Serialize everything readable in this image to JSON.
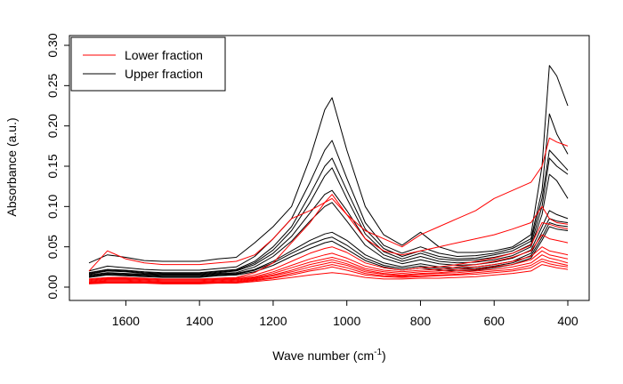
{
  "chart_data": {
    "type": "line",
    "title": "",
    "xlabel": "Wave number (cm",
    "xlabel_sup": "-1",
    "xlabel_close": ")",
    "ylabel": "Absorbance (a.u.)",
    "xlim": [
      1700,
      400
    ],
    "ylim": [
      0,
      0.31
    ],
    "x_reversed": true,
    "xticks": [
      1600,
      1400,
      1200,
      1000,
      800,
      600,
      400
    ],
    "yticks": [
      0.0,
      0.05,
      0.1,
      0.15,
      0.2,
      0.25,
      0.3
    ],
    "ytick_labels": [
      "0.00",
      "0.05",
      "0.10",
      "0.15",
      "0.20",
      "0.25",
      "0.30"
    ],
    "legend_position": "top-left",
    "legend": [
      {
        "label": "Lower fraction",
        "color": "#ff0000"
      },
      {
        "label": "Upper fraction",
        "color": "#000000"
      }
    ],
    "x": [
      1700,
      1650,
      1600,
      1550,
      1500,
      1450,
      1400,
      1350,
      1300,
      1250,
      1200,
      1150,
      1100,
      1060,
      1040,
      1000,
      950,
      900,
      850,
      800,
      750,
      700,
      650,
      600,
      550,
      500,
      470,
      450,
      430,
      400
    ],
    "series": [
      {
        "group": "Upper fraction",
        "color": "#000000",
        "values": [
          0.03,
          0.04,
          0.037,
          0.033,
          0.032,
          0.032,
          0.032,
          0.035,
          0.037,
          0.055,
          0.075,
          0.1,
          0.16,
          0.22,
          0.235,
          0.17,
          0.1,
          0.065,
          0.052,
          0.068,
          0.05,
          0.043,
          0.043,
          0.045,
          0.05,
          0.065,
          0.15,
          0.275,
          0.262,
          0.225
        ]
      },
      {
        "group": "Upper fraction",
        "color": "#000000",
        "values": [
          0.02,
          0.026,
          0.024,
          0.022,
          0.021,
          0.021,
          0.021,
          0.023,
          0.025,
          0.038,
          0.06,
          0.085,
          0.13,
          0.17,
          0.182,
          0.135,
          0.08,
          0.052,
          0.042,
          0.05,
          0.042,
          0.038,
          0.039,
          0.042,
          0.048,
          0.06,
          0.12,
          0.215,
          0.19,
          0.165
        ]
      },
      {
        "group": "Upper fraction",
        "color": "#000000",
        "values": [
          0.018,
          0.022,
          0.021,
          0.019,
          0.018,
          0.018,
          0.018,
          0.02,
          0.022,
          0.032,
          0.05,
          0.075,
          0.115,
          0.15,
          0.16,
          0.12,
          0.072,
          0.048,
          0.038,
          0.045,
          0.038,
          0.035,
          0.036,
          0.04,
          0.045,
          0.057,
          0.11,
          0.17,
          0.16,
          0.145
        ]
      },
      {
        "group": "Upper fraction",
        "color": "#000000",
        "values": [
          0.017,
          0.021,
          0.02,
          0.018,
          0.017,
          0.017,
          0.017,
          0.019,
          0.021,
          0.03,
          0.046,
          0.07,
          0.105,
          0.138,
          0.148,
          0.11,
          0.066,
          0.044,
          0.035,
          0.042,
          0.035,
          0.033,
          0.034,
          0.037,
          0.042,
          0.053,
          0.1,
          0.16,
          0.15,
          0.14
        ]
      },
      {
        "group": "Upper fraction",
        "color": "#000000",
        "values": [
          0.016,
          0.02,
          0.019,
          0.017,
          0.016,
          0.016,
          0.016,
          0.018,
          0.02,
          0.028,
          0.042,
          0.063,
          0.092,
          0.115,
          0.12,
          0.095,
          0.06,
          0.04,
          0.032,
          0.038,
          0.032,
          0.03,
          0.031,
          0.034,
          0.039,
          0.05,
          0.09,
          0.14,
          0.132,
          0.11
        ]
      },
      {
        "group": "Upper fraction",
        "color": "#000000",
        "values": [
          0.015,
          0.018,
          0.017,
          0.016,
          0.015,
          0.015,
          0.015,
          0.017,
          0.018,
          0.025,
          0.038,
          0.057,
          0.082,
          0.1,
          0.105,
          0.082,
          0.052,
          0.036,
          0.029,
          0.034,
          0.029,
          0.027,
          0.028,
          0.031,
          0.036,
          0.046,
          0.075,
          0.095,
          0.09,
          0.085
        ]
      },
      {
        "group": "Upper fraction",
        "color": "#000000",
        "values": [
          0.014,
          0.017,
          0.016,
          0.015,
          0.014,
          0.014,
          0.014,
          0.016,
          0.017,
          0.022,
          0.032,
          0.045,
          0.058,
          0.066,
          0.068,
          0.058,
          0.04,
          0.03,
          0.025,
          0.029,
          0.025,
          0.024,
          0.025,
          0.028,
          0.032,
          0.042,
          0.068,
          0.085,
          0.082,
          0.08
        ]
      },
      {
        "group": "Upper fraction",
        "color": "#000000",
        "values": [
          0.013,
          0.016,
          0.015,
          0.014,
          0.013,
          0.013,
          0.013,
          0.015,
          0.016,
          0.021,
          0.03,
          0.042,
          0.053,
          0.06,
          0.062,
          0.052,
          0.036,
          0.027,
          0.023,
          0.026,
          0.023,
          0.022,
          0.023,
          0.026,
          0.03,
          0.039,
          0.062,
          0.08,
          0.077,
          0.075
        ]
      },
      {
        "group": "Upper fraction",
        "color": "#000000",
        "values": [
          0.012,
          0.015,
          0.014,
          0.013,
          0.012,
          0.012,
          0.012,
          0.014,
          0.015,
          0.019,
          0.027,
          0.038,
          0.048,
          0.055,
          0.057,
          0.047,
          0.033,
          0.025,
          0.021,
          0.024,
          0.021,
          0.02,
          0.021,
          0.024,
          0.028,
          0.036,
          0.058,
          0.075,
          0.072,
          0.07
        ]
      },
      {
        "group": "Lower fraction",
        "color": "#ff0000",
        "values": [
          0.02,
          0.045,
          0.035,
          0.03,
          0.028,
          0.028,
          0.028,
          0.03,
          0.032,
          0.04,
          0.06,
          0.085,
          0.095,
          0.105,
          0.11,
          0.09,
          0.07,
          0.06,
          0.05,
          0.065,
          0.075,
          0.085,
          0.095,
          0.11,
          0.12,
          0.13,
          0.15,
          0.185,
          0.18,
          0.175
        ]
      },
      {
        "group": "Lower fraction",
        "color": "#ff0000",
        "values": [
          0.01,
          0.012,
          0.012,
          0.011,
          0.01,
          0.01,
          0.01,
          0.011,
          0.012,
          0.018,
          0.03,
          0.055,
          0.08,
          0.105,
          0.115,
          0.09,
          0.06,
          0.045,
          0.04,
          0.045,
          0.05,
          0.055,
          0.06,
          0.065,
          0.072,
          0.08,
          0.1,
          0.085,
          0.08,
          0.078
        ]
      },
      {
        "group": "Lower fraction",
        "color": "#ff0000",
        "values": [
          0.009,
          0.011,
          0.011,
          0.01,
          0.009,
          0.009,
          0.009,
          0.01,
          0.011,
          0.015,
          0.022,
          0.032,
          0.042,
          0.048,
          0.05,
          0.043,
          0.03,
          0.024,
          0.021,
          0.024,
          0.025,
          0.028,
          0.032,
          0.036,
          0.042,
          0.052,
          0.08,
          0.078,
          0.075,
          0.072
        ]
      },
      {
        "group": "Lower fraction",
        "color": "#ff0000",
        "values": [
          0.008,
          0.01,
          0.01,
          0.009,
          0.008,
          0.008,
          0.008,
          0.009,
          0.01,
          0.013,
          0.019,
          0.027,
          0.035,
          0.04,
          0.042,
          0.036,
          0.026,
          0.021,
          0.019,
          0.021,
          0.022,
          0.025,
          0.028,
          0.032,
          0.037,
          0.045,
          0.065,
          0.06,
          0.058,
          0.055
        ]
      },
      {
        "group": "Lower fraction",
        "color": "#ff0000",
        "values": [
          0.007,
          0.009,
          0.009,
          0.008,
          0.007,
          0.007,
          0.007,
          0.008,
          0.009,
          0.012,
          0.017,
          0.024,
          0.031,
          0.035,
          0.037,
          0.032,
          0.023,
          0.019,
          0.017,
          0.019,
          0.02,
          0.022,
          0.025,
          0.028,
          0.032,
          0.038,
          0.05,
          0.045,
          0.043,
          0.04
        ]
      },
      {
        "group": "Lower fraction",
        "color": "#ff0000",
        "values": [
          0.006,
          0.008,
          0.008,
          0.007,
          0.006,
          0.006,
          0.006,
          0.007,
          0.008,
          0.011,
          0.015,
          0.021,
          0.028,
          0.032,
          0.034,
          0.029,
          0.021,
          0.017,
          0.015,
          0.017,
          0.018,
          0.02,
          0.022,
          0.025,
          0.028,
          0.034,
          0.045,
          0.04,
          0.038,
          0.035
        ]
      },
      {
        "group": "Lower fraction",
        "color": "#ff0000",
        "values": [
          0.006,
          0.007,
          0.007,
          0.006,
          0.006,
          0.006,
          0.006,
          0.006,
          0.007,
          0.01,
          0.014,
          0.019,
          0.025,
          0.029,
          0.031,
          0.027,
          0.019,
          0.016,
          0.014,
          0.016,
          0.017,
          0.018,
          0.02,
          0.022,
          0.025,
          0.03,
          0.04,
          0.036,
          0.034,
          0.03
        ]
      },
      {
        "group": "Lower fraction",
        "color": "#ff0000",
        "values": [
          0.005,
          0.006,
          0.006,
          0.006,
          0.005,
          0.005,
          0.005,
          0.006,
          0.006,
          0.009,
          0.012,
          0.017,
          0.022,
          0.026,
          0.028,
          0.024,
          0.017,
          0.014,
          0.013,
          0.014,
          0.015,
          0.016,
          0.018,
          0.02,
          0.022,
          0.027,
          0.035,
          0.032,
          0.03,
          0.027
        ]
      },
      {
        "group": "Lower fraction",
        "color": "#ff0000",
        "values": [
          0.005,
          0.006,
          0.006,
          0.005,
          0.005,
          0.005,
          0.005,
          0.005,
          0.006,
          0.008,
          0.011,
          0.015,
          0.02,
          0.023,
          0.025,
          0.021,
          0.015,
          0.013,
          0.012,
          0.013,
          0.014,
          0.015,
          0.016,
          0.018,
          0.02,
          0.024,
          0.032,
          0.029,
          0.027,
          0.025
        ]
      },
      {
        "group": "Lower fraction",
        "color": "#ff0000",
        "values": [
          0.004,
          0.005,
          0.005,
          0.005,
          0.004,
          0.004,
          0.004,
          0.005,
          0.005,
          0.007,
          0.009,
          0.012,
          0.015,
          0.017,
          0.018,
          0.016,
          0.012,
          0.01,
          0.01,
          0.011,
          0.011,
          0.012,
          0.013,
          0.015,
          0.017,
          0.02,
          0.028,
          0.026,
          0.024,
          0.022
        ]
      }
    ]
  }
}
